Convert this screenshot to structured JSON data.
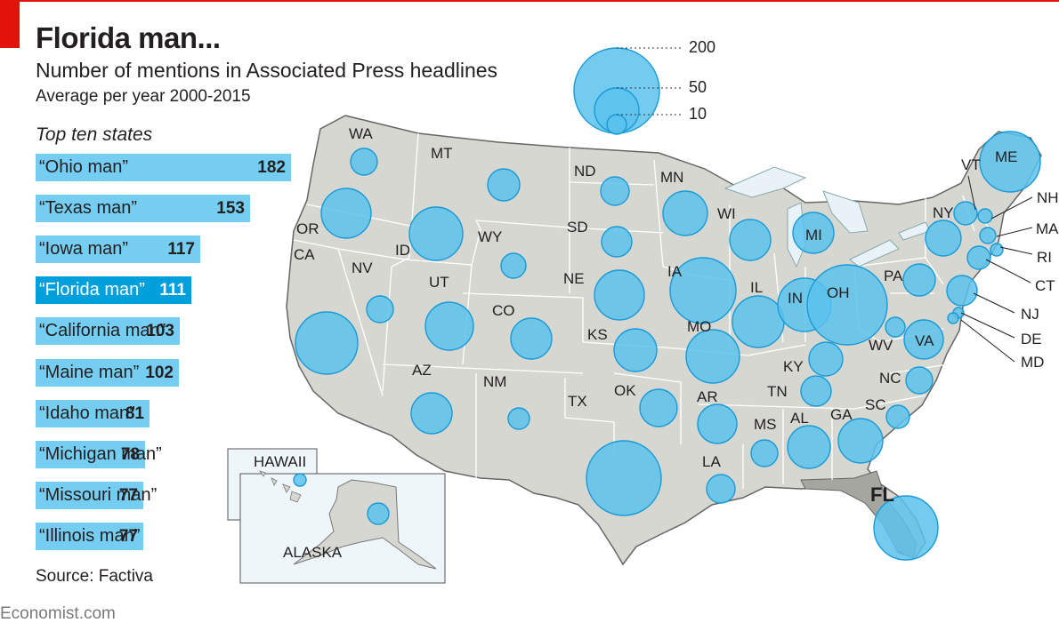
{
  "header": {
    "title": "Florida man...",
    "subtitle": "Number of mentions in Associated Press headlines",
    "period": "Average per year 2000-2015"
  },
  "top_ten": {
    "heading": "Top ten states",
    "items": [
      {
        "label": "“Ohio man”",
        "value": 182
      },
      {
        "label": "“Texas man”",
        "value": 153
      },
      {
        "label": "“Iowa man”",
        "value": 117
      },
      {
        "label": "“Florida man”",
        "value": 111,
        "highlight": true
      },
      {
        "label": "“California man”",
        "value": 103
      },
      {
        "label": "“Maine man”",
        "value": 102
      },
      {
        "label": "“Idaho man”",
        "value": 81
      },
      {
        "label": "“Michigan man”",
        "value": 78
      },
      {
        "label": "“Missouri man”",
        "value": 77
      },
      {
        "label": "“Illinois man”",
        "value": 77
      }
    ]
  },
  "size_key": {
    "values": [
      200,
      50,
      10
    ]
  },
  "map": {
    "states": [
      "WA",
      "MT",
      "ND",
      "MN",
      "OR",
      "ID",
      "WY",
      "SD",
      "WI",
      "MI",
      "NY",
      "VT",
      "ME",
      "NH",
      "MA",
      "RI",
      "CT",
      "CA",
      "NV",
      "UT",
      "CO",
      "NE",
      "IA",
      "IL",
      "IN",
      "OH",
      "PA",
      "NJ",
      "DE",
      "MD",
      "AZ",
      "NM",
      "KS",
      "MO",
      "KY",
      "WV",
      "VA",
      "NC",
      "TX",
      "OK",
      "AR",
      "TN",
      "SC",
      "MS",
      "AL",
      "GA",
      "LA",
      "FL"
    ],
    "highlight": "FL",
    "insets": {
      "hawaii": "HAWAII",
      "alaska": "ALASKA"
    }
  },
  "colors": {
    "bubble": "#5bc2ec",
    "bubble_stroke": "#1a9ad6",
    "bar": "#75cdf1",
    "bar_highlight": "#00a0dd",
    "land": "#d7d7d2",
    "accent": "#e3120b"
  },
  "source": "Source: Factiva",
  "footer": "Economist.com"
}
